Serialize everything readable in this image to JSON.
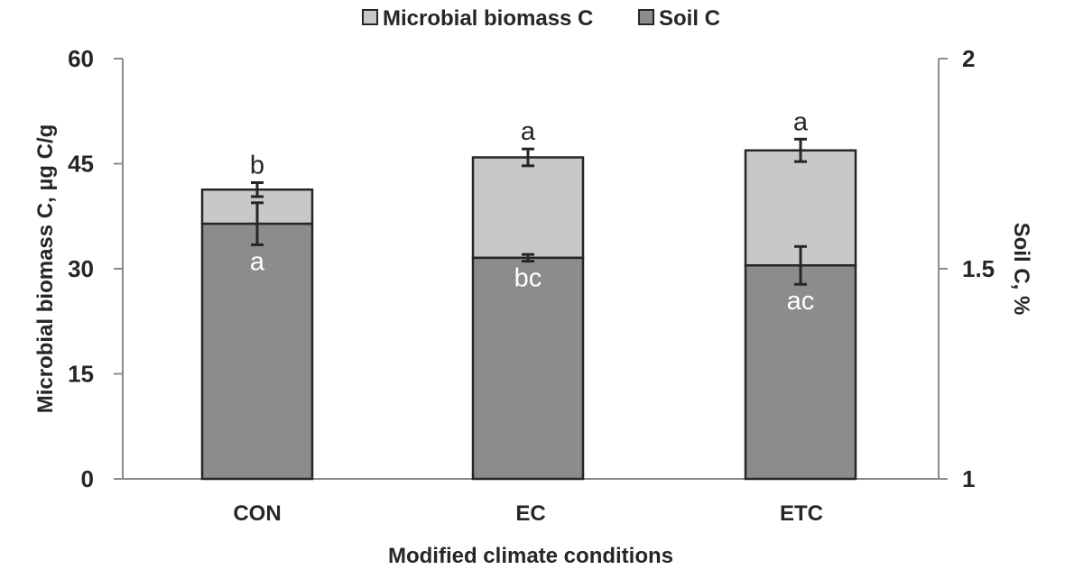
{
  "chart_data": {
    "type": "bar",
    "stacked": true,
    "xlabel": "Modified climate conditions",
    "ylabel": "Microbial biomass C, µg C/g",
    "y2label": "Soil C, %",
    "categories": [
      "CON",
      "EC",
      "ETC"
    ],
    "ylim": [
      0,
      60
    ],
    "yticks": [
      "0",
      "15",
      "30",
      "45",
      "60"
    ],
    "y2lim": [
      1,
      2
    ],
    "y2ticks": [
      "1",
      "1.5",
      "2"
    ],
    "grid": false,
    "legend_position": "top-center",
    "series": [
      {
        "name": "Soil C",
        "axis": "right",
        "color": "#8c8c8c",
        "values": [
          1.607,
          1.526,
          1.508
        ],
        "errors": [
          0.05,
          0.008,
          0.045
        ],
        "letters": [
          "a",
          "bc",
          "ac"
        ]
      },
      {
        "name": "Microbial biomass C",
        "axis": "left",
        "color": "#c8c8c8",
        "totals": [
          41.3,
          45.9,
          46.9
        ],
        "errors": [
          1.0,
          1.2,
          1.6
        ],
        "letters": [
          "b",
          "a",
          "a"
        ]
      }
    ]
  }
}
